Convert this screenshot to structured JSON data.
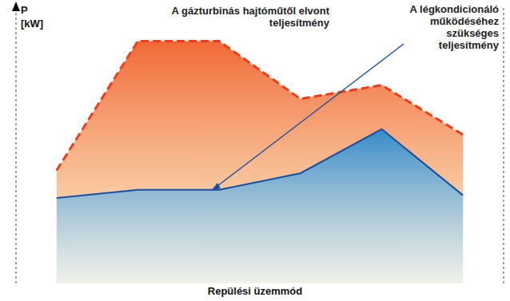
{
  "chart_data": {
    "type": "area",
    "x_label": "Repülési üzemmód",
    "y_label": "P\n[kW]",
    "x": [
      0,
      1,
      2,
      3,
      4,
      5
    ],
    "series": [
      {
        "name": "A gázturbinás hajtóműtől elvont\nteljesítmény",
        "color": "#e8401c",
        "line_style": "dashed",
        "values": [
          41,
          88,
          88,
          67,
          72,
          54
        ]
      },
      {
        "name": "A légkondicionáló\nműködéséhez\nszükséges\nteljesítmény",
        "color": "#1f4e9c",
        "line_style": "solid",
        "values": [
          31,
          34,
          34,
          40,
          56,
          32
        ]
      }
    ],
    "xlim": [
      -0.5,
      5.5
    ],
    "xticks": [
      0.5,
      1.5,
      2.5,
      3.5,
      4.5
    ],
    "ylim": [
      0,
      100
    ],
    "yticks": [],
    "grid": true,
    "tick_labels": false
  }
}
